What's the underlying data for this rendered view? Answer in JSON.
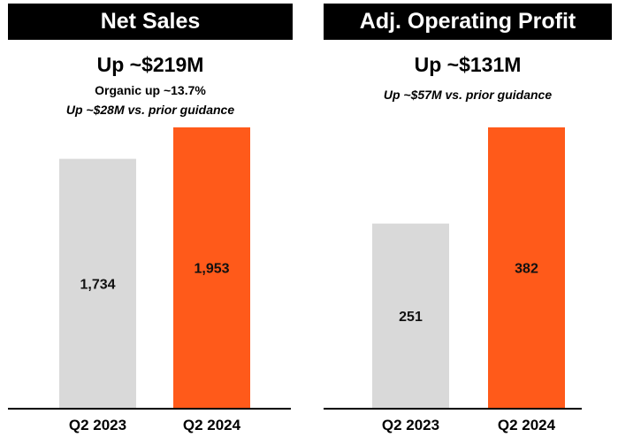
{
  "panels": [
    {
      "header": "Net Sales",
      "headline": "Up ~$219M",
      "sublines": [
        "Organic up ~13.7%",
        "Up ~$28M vs. prior guidance"
      ]
    },
    {
      "header": "Adj. Operating Profit",
      "headline": "Up ~$131M",
      "sublines": [
        "Up ~$57M vs. prior guidance"
      ]
    }
  ],
  "colors": {
    "prior": "#d9d9d9",
    "current": "#ff5a1a",
    "header_bg": "#000000",
    "axis": "#000000"
  },
  "chart_data": [
    {
      "type": "bar",
      "title": "Net Sales",
      "categories": [
        "Q2 2023",
        "Q2 2024"
      ],
      "values": [
        1734,
        1953
      ],
      "labels": [
        "1,734",
        "1,953"
      ],
      "ylim": [
        0,
        1953
      ]
    },
    {
      "type": "bar",
      "title": "Adj. Operating Profit",
      "categories": [
        "Q2 2023",
        "Q2 2024"
      ],
      "values": [
        251,
        382
      ],
      "labels": [
        "251",
        "382"
      ],
      "ylim": [
        0,
        382
      ]
    }
  ]
}
